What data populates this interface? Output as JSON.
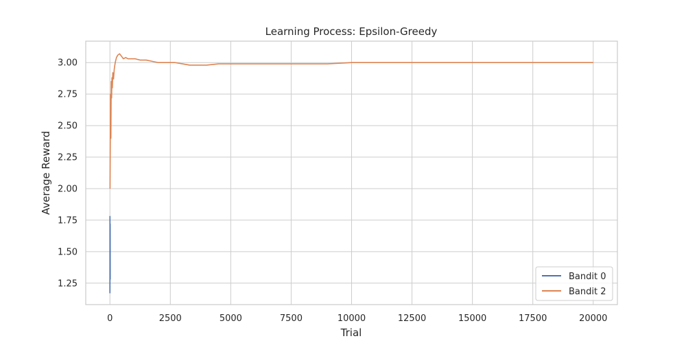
{
  "chart_data": {
    "type": "line",
    "title": "Learning Process: Epsilon-Greedy",
    "xlabel": "Trial",
    "ylabel": "Average Reward",
    "xlim": [
      -1000,
      21000
    ],
    "ylim": [
      1.08,
      3.17
    ],
    "x_ticks": [
      0,
      2500,
      5000,
      7500,
      10000,
      12500,
      15000,
      17500,
      20000
    ],
    "x_tick_labels": [
      "0",
      "2500",
      "5000",
      "7500",
      "10000",
      "12500",
      "15000",
      "17500",
      "20000"
    ],
    "y_ticks": [
      1.25,
      1.5,
      1.75,
      2.0,
      2.25,
      2.5,
      2.75,
      3.0
    ],
    "y_tick_labels": [
      "1.25",
      "1.50",
      "1.75",
      "2.00",
      "2.25",
      "2.50",
      "2.75",
      "3.00"
    ],
    "grid": true,
    "legend_position": "bottom-right",
    "series": [
      {
        "name": "Bandit 0",
        "color": "#4c72b0",
        "x": [
          1,
          2,
          3,
          4,
          5,
          6,
          7,
          8,
          10,
          12
        ],
        "y": [
          1.17,
          1.78,
          1.27,
          1.65,
          1.45,
          1.7,
          1.32,
          1.55,
          1.72,
          1.28
        ]
      },
      {
        "name": "Bandit 2",
        "color": "#dd8452",
        "x": [
          5,
          15,
          25,
          40,
          55,
          70,
          85,
          100,
          120,
          150,
          180,
          220,
          270,
          330,
          400,
          480,
          560,
          650,
          750,
          900,
          1050,
          1250,
          1500,
          1750,
          2000,
          2300,
          2700,
          3000,
          3300,
          3600,
          4000,
          4500,
          5000,
          6000,
          7000,
          8000,
          9000,
          10000,
          11000,
          12000,
          13000,
          14000,
          15000,
          16000,
          17000,
          18000,
          19000,
          20000
        ],
        "y": [
          2.0,
          2.38,
          2.75,
          2.4,
          2.85,
          2.72,
          2.88,
          2.8,
          2.92,
          2.87,
          2.95,
          3.0,
          3.04,
          3.06,
          3.07,
          3.05,
          3.03,
          3.04,
          3.03,
          3.03,
          3.03,
          3.02,
          3.02,
          3.01,
          3.0,
          3.0,
          3.0,
          2.99,
          2.98,
          2.98,
          2.98,
          2.99,
          2.99,
          2.99,
          2.99,
          2.99,
          2.99,
          3.0,
          3.0,
          3.0,
          3.0,
          3.0,
          3.0,
          3.0,
          3.0,
          3.0,
          3.0,
          3.0
        ]
      }
    ]
  }
}
